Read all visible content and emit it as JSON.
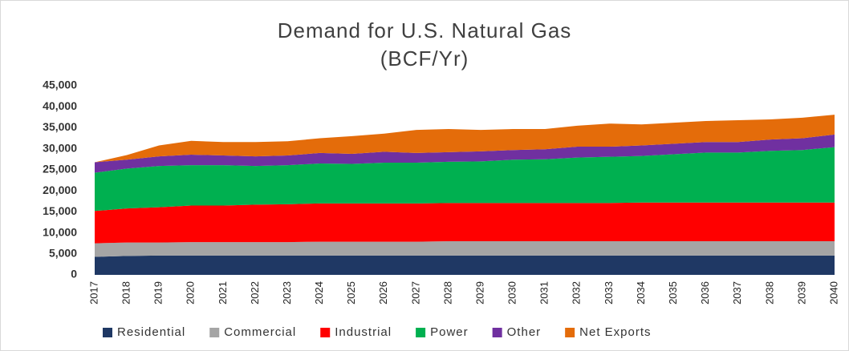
{
  "chart_data": {
    "type": "stacked_area",
    "title": "Demand for U.S. Natural Gas",
    "subtitle": "(BCF/Yr)",
    "categories": [
      "2017",
      "2018",
      "2019",
      "2020",
      "2021",
      "2022",
      "2023",
      "2024",
      "2025",
      "2026",
      "2027",
      "2028",
      "2029",
      "2030",
      "2031",
      "2032",
      "2033",
      "2034",
      "2035",
      "2036",
      "2037",
      "2038",
      "2039",
      "2040"
    ],
    "series": [
      {
        "name": "Residential",
        "color": "#1f3864",
        "values": [
          4300,
          4500,
          4600,
          4600,
          4600,
          4600,
          4600,
          4600,
          4600,
          4600,
          4600,
          4600,
          4600,
          4600,
          4600,
          4600,
          4600,
          4600,
          4600,
          4600,
          4600,
          4600,
          4600,
          4600
        ]
      },
      {
        "name": "Commercial",
        "color": "#a5a5a5",
        "values": [
          3200,
          3200,
          3100,
          3200,
          3200,
          3200,
          3200,
          3300,
          3300,
          3300,
          3300,
          3400,
          3400,
          3400,
          3400,
          3400,
          3400,
          3400,
          3400,
          3400,
          3400,
          3400,
          3400,
          3400
        ]
      },
      {
        "name": "Industrial",
        "color": "#ff0000",
        "values": [
          7700,
          8100,
          8400,
          8700,
          8700,
          8900,
          9000,
          9100,
          9100,
          9100,
          9100,
          9100,
          9100,
          9100,
          9100,
          9100,
          9100,
          9200,
          9200,
          9200,
          9200,
          9200,
          9200,
          9200
        ]
      },
      {
        "name": "Power",
        "color": "#00b050",
        "values": [
          9100,
          9500,
          9800,
          9600,
          9600,
          9200,
          9300,
          9500,
          9400,
          9700,
          9700,
          9800,
          9900,
          10300,
          10400,
          10800,
          11000,
          11100,
          11500,
          11900,
          11900,
          12300,
          12500,
          13200
        ]
      },
      {
        "name": "Other",
        "color": "#7030a0",
        "values": [
          2500,
          2100,
          2300,
          2500,
          2300,
          2300,
          2300,
          2500,
          2400,
          2600,
          2300,
          2300,
          2400,
          2300,
          2400,
          2600,
          2400,
          2500,
          2500,
          2500,
          2500,
          2700,
          2800,
          3000
        ]
      },
      {
        "name": "Net Exports",
        "color": "#e46c0a",
        "values": [
          0,
          1100,
          2600,
          3300,
          3200,
          3400,
          3400,
          3500,
          4200,
          4300,
          5500,
          5500,
          5100,
          5000,
          4800,
          5000,
          5500,
          5000,
          5000,
          5000,
          5200,
          4800,
          4900,
          4700
        ]
      }
    ],
    "ylim": [
      0,
      45000
    ],
    "yticks": [
      0,
      {
        "value": 5000,
        "label": "5,000"
      },
      {
        "value": 10000,
        "label": "10,000"
      },
      {
        "value": 15000,
        "label": "15,000"
      },
      {
        "value": 20000,
        "label": "20,000"
      },
      {
        "value": 25000,
        "label": "25,000"
      },
      {
        "value": 30000,
        "label": "30,000"
      },
      {
        "value": 35000,
        "label": "35,000"
      },
      {
        "value": 40000,
        "label": "40,000"
      },
      {
        "value": 45000,
        "label": "45,000"
      }
    ],
    "legend": "bottom"
  }
}
